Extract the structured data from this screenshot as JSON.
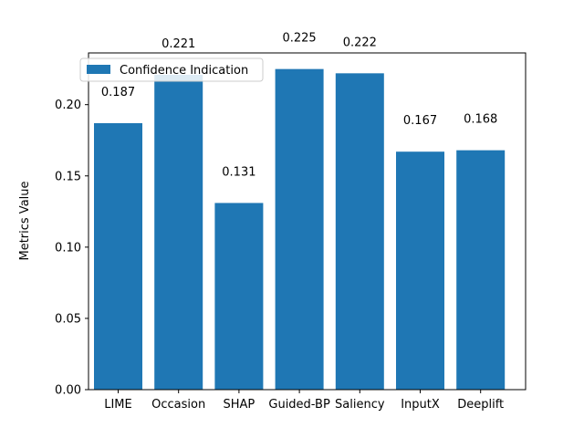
{
  "chart_data": {
    "type": "bar",
    "categories": [
      "LIME",
      "Occasion",
      "SHAP",
      "Guided-BP",
      "Saliency",
      "InputX",
      "Deeplift"
    ],
    "series": [
      {
        "name": "Confidence Indication",
        "values": [
          0.187,
          0.221,
          0.131,
          0.225,
          0.222,
          0.167,
          0.168
        ],
        "color": "#1f77b4"
      }
    ],
    "data_labels": [
      "0.187",
      "0.221",
      "0.131",
      "0.225",
      "0.222",
      "0.167",
      "0.168"
    ],
    "ylabel": "Metrics Value",
    "xlabel": "",
    "ylim": [
      0,
      0.2363
    ],
    "yticks": [
      0.0,
      0.05,
      0.1,
      0.15,
      0.2
    ],
    "ytick_labels": [
      "0.00",
      "0.05",
      "0.10",
      "0.15",
      "0.20"
    ],
    "grid": false,
    "legend_position": "top-left"
  }
}
